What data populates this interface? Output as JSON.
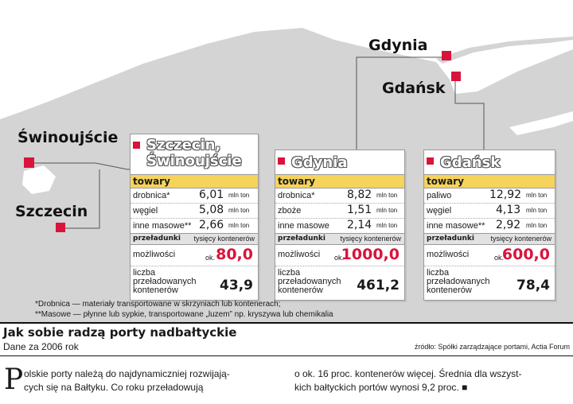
{
  "colors": {
    "accent": "#d9143b",
    "header_yellow": "#f6d35b",
    "land": "#d4d4d4",
    "water": "#ffffff",
    "subheader_gray": "#e2e2e2"
  },
  "map_labels": {
    "gdynia": "Gdynia",
    "gdansk": "Gdańsk",
    "swinoujscie": "Świnoujście",
    "szczecin": "Szczecin"
  },
  "cards": [
    {
      "title_lines": [
        "Szczecin,",
        "Świnoujście"
      ],
      "towary_label": "towary",
      "cargo": [
        {
          "label": "drobnica*",
          "value": "6,01",
          "unit": "mln ton"
        },
        {
          "label": "węgiel",
          "value": "5,08",
          "unit": "mln ton"
        },
        {
          "label": "inne masowe**",
          "value": "2,66",
          "unit": "mln ton"
        }
      ],
      "przeladunki_label": "przeładunki",
      "przeladunki_unit": "tysięcy kontenerów",
      "capacity_label": "możliwości",
      "approx": "ok.",
      "capacity": "80,0",
      "handled_label": "liczba przeładowanych kontenerów",
      "handled": "43,9"
    },
    {
      "title_lines": [
        "Gdynia"
      ],
      "towary_label": "towary",
      "cargo": [
        {
          "label": "drobnica*",
          "value": "8,82",
          "unit": "mln ton"
        },
        {
          "label": "zboże",
          "value": "1,51",
          "unit": "mln ton"
        },
        {
          "label": "inne masowe",
          "value": "2,14",
          "unit": "mln ton"
        }
      ],
      "przeladunki_label": "przeładunki",
      "przeladunki_unit": "tysięcy kontenerów",
      "capacity_label": "możliwości",
      "approx": "ok.",
      "capacity": "1000,0",
      "handled_label": "liczba przeładowanych kontenerów",
      "handled": "461,2"
    },
    {
      "title_lines": [
        "Gdańsk"
      ],
      "towary_label": "towary",
      "cargo": [
        {
          "label": "paliwo",
          "value": "12,92",
          "unit": "mln ton"
        },
        {
          "label": "węgiel",
          "value": "4,13",
          "unit": "mln ton"
        },
        {
          "label": "inne masowe**",
          "value": "2,92",
          "unit": "mln ton"
        }
      ],
      "przeladunki_label": "przeładunki",
      "przeladunki_unit": "tysięcy kontenerów",
      "capacity_label": "możliwości",
      "approx": "ok.",
      "capacity": "600,0",
      "handled_label": "liczba przeładowanych kontenerów",
      "handled": "78,4"
    }
  ],
  "footnotes": [
    "*Drobnica — materiały transportowane w skrzyniach lub kontenerach;",
    "**Masowe — płynne lub sypkie, transportowane „luzem” np. kryszywa lub chemikalia"
  ],
  "headline": "Jak sobie radzą porty nadbałtyckie",
  "subheadline": "Dane za 2006 rok",
  "source": "źródło: Spółki zarządzające portami, Actia Forum",
  "article": {
    "dropcap": "P",
    "col1": [
      "olskie porty należą do najdynamiczniej rozwijają-",
      "cych się na Bałtyku. Co roku przeładowują"
    ],
    "col2": [
      "o ok. 16 proc. kontenerów więcej. Średnia dla wszyst-",
      "kich bałtyckich portów wynosi 9,2 proc. ■"
    ]
  }
}
